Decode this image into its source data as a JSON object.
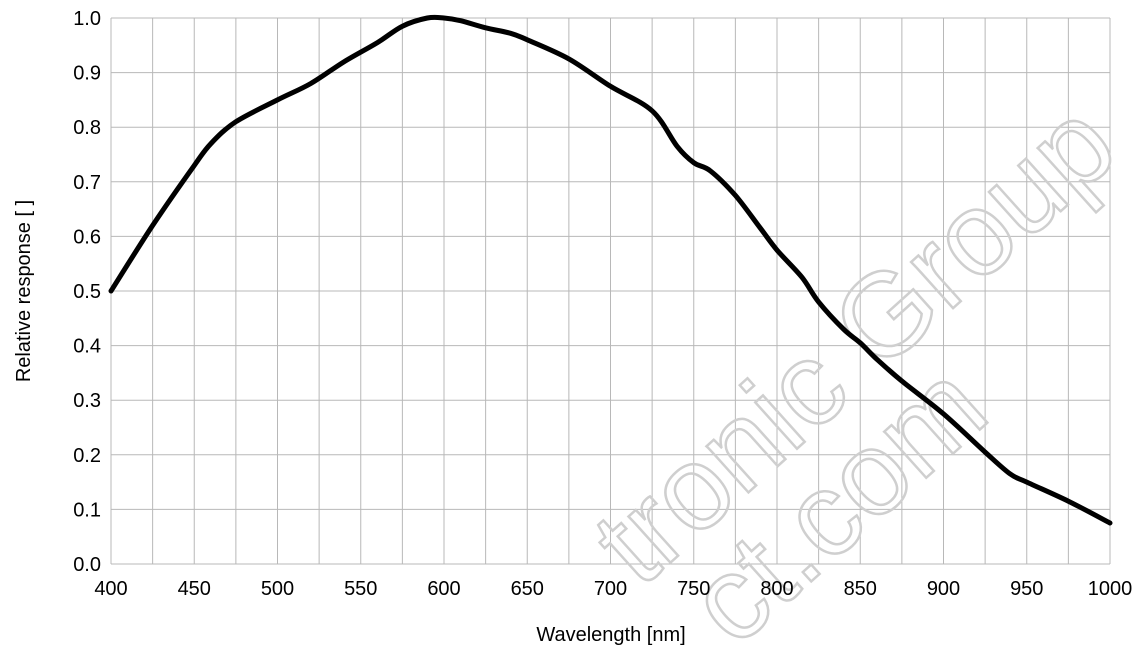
{
  "chart_data": {
    "type": "line",
    "title": "",
    "xlabel": "Wavelength  [nm]",
    "ylabel": "Relative response [ ]",
    "xlim": [
      400,
      1000
    ],
    "ylim": [
      0.0,
      1.0
    ],
    "x_ticks": [
      400,
      450,
      500,
      550,
      600,
      650,
      700,
      750,
      800,
      850,
      900,
      950,
      1000
    ],
    "x_tick_labels": [
      "400",
      "450",
      "500",
      "550",
      "600",
      "650",
      "700",
      "750",
      "800",
      "850",
      "900",
      "950",
      "1000"
    ],
    "y_ticks": [
      0.0,
      0.1,
      0.2,
      0.3,
      0.4,
      0.5,
      0.6,
      0.7,
      0.8,
      0.9,
      1.0
    ],
    "y_tick_labels": [
      "0.0",
      "0.1",
      "0.2",
      "0.3",
      "0.4",
      "0.5",
      "0.6",
      "0.7",
      "0.8",
      "0.9",
      "1.0"
    ],
    "x_minor_gridlines": [
      425,
      475,
      525,
      575,
      625,
      675,
      725,
      775,
      825,
      875,
      925,
      975
    ],
    "grid": true,
    "line_color": "#000000",
    "grid_color": "#b8b8b8",
    "series": [
      {
        "x": [
          400,
          425,
          450,
          460,
          475,
          500,
          520,
          540,
          560,
          575,
          590,
          600,
          610,
          625,
          640,
          650,
          675,
          700,
          725,
          740,
          750,
          760,
          775,
          790,
          800,
          815,
          825,
          840,
          850,
          860,
          875,
          900,
          925,
          940,
          950,
          975,
          1000
        ],
        "y": [
          0.5,
          0.62,
          0.73,
          0.77,
          0.81,
          0.85,
          0.88,
          0.92,
          0.955,
          0.985,
          1.0,
          1.0,
          0.995,
          0.982,
          0.972,
          0.96,
          0.925,
          0.875,
          0.83,
          0.765,
          0.735,
          0.72,
          0.675,
          0.615,
          0.575,
          0.525,
          0.48,
          0.43,
          0.405,
          0.375,
          0.335,
          0.275,
          0.205,
          0.165,
          0.15,
          0.115,
          0.075
        ]
      }
    ],
    "watermark": [
      "tronic Group",
      "ct.com"
    ]
  }
}
